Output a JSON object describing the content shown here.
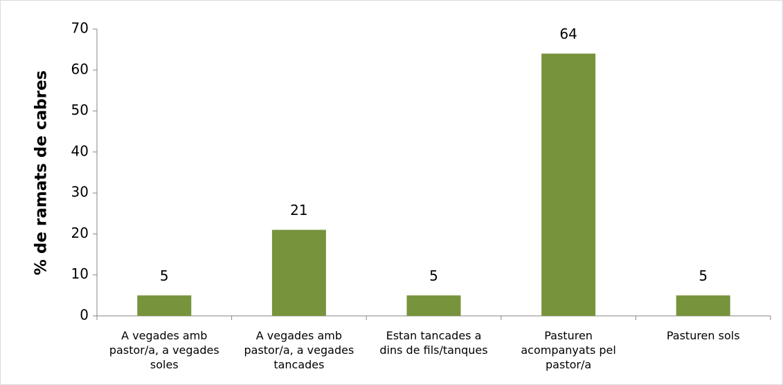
{
  "chart_data": {
    "type": "bar",
    "y_label": "% de ramats de cabres",
    "categories": [
      "A vegades amb pastor/a, a vegades soles",
      "A vegades amb pastor/a, a vegades tancades",
      "Estan tancades a dins de fils/tanques",
      "Pasturen acompanyats pel pastor/a",
      "Pasturen sols"
    ],
    "values": [
      5,
      21,
      5,
      64,
      5
    ],
    "color": "#77933c",
    "ylim": [
      0,
      70
    ],
    "yticks": [
      0,
      10,
      20,
      30,
      40,
      50,
      60,
      70
    ],
    "grid": false
  }
}
